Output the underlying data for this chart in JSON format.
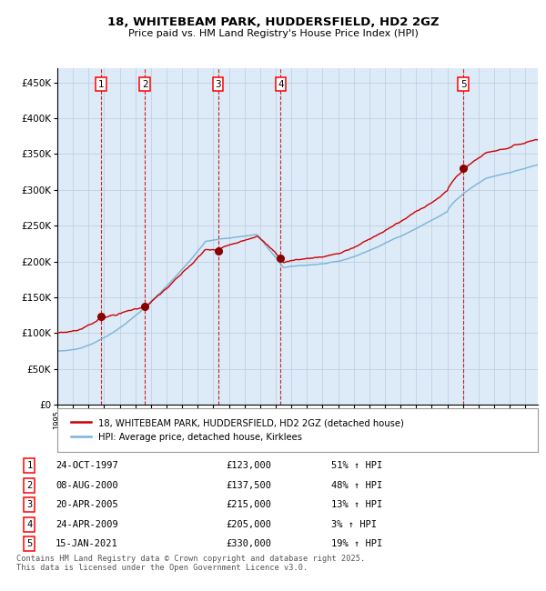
{
  "title1": "18, WHITEBEAM PARK, HUDDERSFIELD, HD2 2GZ",
  "title2": "Price paid vs. HM Land Registry's House Price Index (HPI)",
  "legend_label_red": "18, WHITEBEAM PARK, HUDDERSFIELD, HD2 2GZ (detached house)",
  "legend_label_blue": "HPI: Average price, detached house, Kirklees",
  "footer": "Contains HM Land Registry data © Crown copyright and database right 2025.\nThis data is licensed under the Open Government Licence v3.0.",
  "sales": [
    {
      "num": 1,
      "date": "24-OCT-1997",
      "price": 123000,
      "pct": "51%",
      "dir": "↑",
      "x_year": 1997.82
    },
    {
      "num": 2,
      "date": "08-AUG-2000",
      "price": 137500,
      "pct": "48%",
      "dir": "↑",
      "x_year": 2000.61
    },
    {
      "num": 3,
      "date": "20-APR-2005",
      "price": 215000,
      "pct": "13%",
      "dir": "↑",
      "x_year": 2005.3
    },
    {
      "num": 4,
      "date": "24-APR-2009",
      "price": 205000,
      "pct": "3%",
      "dir": "↑",
      "x_year": 2009.32
    },
    {
      "num": 5,
      "date": "15-JAN-2021",
      "price": 330000,
      "pct": "19%",
      "dir": "↑",
      "x_year": 2021.04
    }
  ],
  "hpi_color": "#7ab4d8",
  "price_color": "#cc0000",
  "bg_color": "#ddeaf7",
  "grid_color": "#bbccdd",
  "sale_dot_color": "#880000",
  "dashed_color": "#cc0000",
  "xmin": 1995.0,
  "xmax": 2025.8,
  "ymin": 0,
  "ymax": 470000,
  "yticks": [
    0,
    50000,
    100000,
    150000,
    200000,
    250000,
    300000,
    350000,
    400000,
    450000
  ]
}
